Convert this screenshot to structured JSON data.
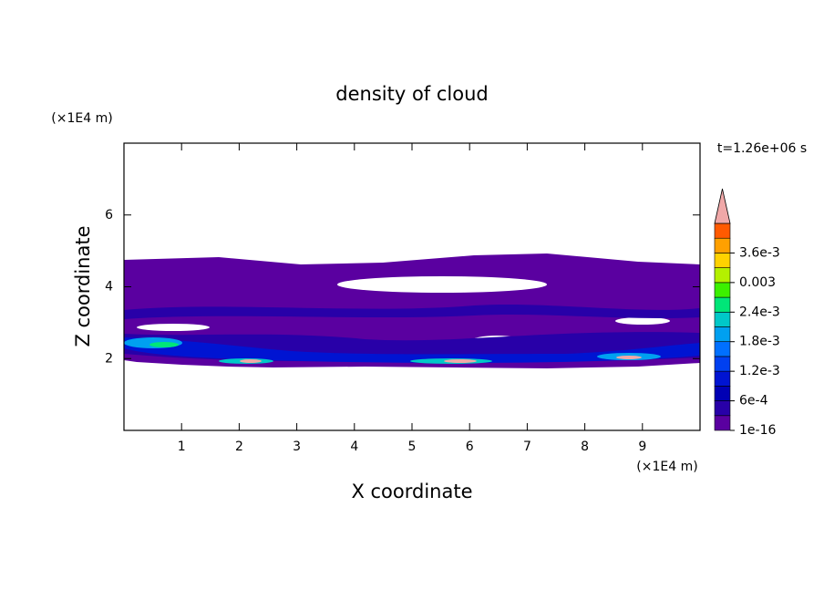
{
  "chart_data": {
    "type": "contour",
    "title": "density of cloud",
    "x_label": "X coordinate",
    "y_label": "Z coordinate",
    "x_unit": "(×1E4 m)",
    "y_unit": "(×1E4 m)",
    "time_label": "t=1.26e+06 s",
    "xlim": [
      0,
      10
    ],
    "ylim": [
      0,
      8
    ],
    "xticks": [
      1,
      2,
      3,
      4,
      5,
      6,
      7,
      8,
      9
    ],
    "yticks": [
      2,
      4,
      6
    ],
    "colorbar": {
      "levels": [
        1e-16,
        0.0003,
        0.0006,
        0.0009,
        0.0012,
        0.0015,
        0.0018,
        0.0021,
        0.0024,
        0.0027,
        0.003,
        0.0033,
        0.0036,
        0.0039,
        0.0042
      ],
      "colors": [
        "#5a00a0",
        "#2800a8",
        "#0000b4",
        "#0014d2",
        "#0040f0",
        "#0070ff",
        "#00a0f0",
        "#00c8c8",
        "#00e678",
        "#3cf000",
        "#b4f000",
        "#ffd200",
        "#ffa000",
        "#ff5a00"
      ],
      "extend_color": "#f0a8a8",
      "ticks": [
        1e-16,
        {
          "value": 0.0006,
          "label": "6e-4"
        },
        {
          "value": 0.0012,
          "label": "1.2e-3"
        },
        {
          "value": 0.0018,
          "label": "1.8e-3"
        },
        {
          "value": 0.0024,
          "label": "2.4e-3"
        },
        0.003,
        {
          "value": 0.0036,
          "label": "3.6e-3"
        }
      ]
    }
  }
}
